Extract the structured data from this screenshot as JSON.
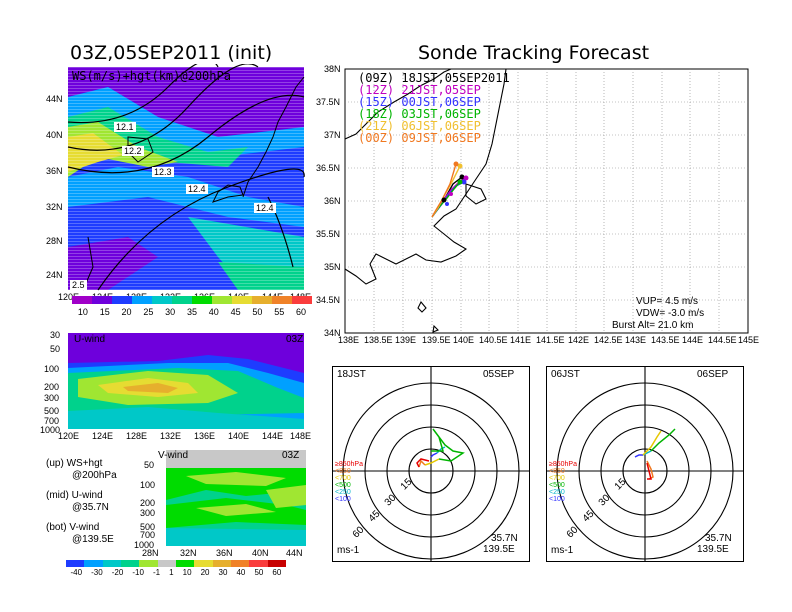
{
  "left_title": "03Z,05SEP2011 (init)",
  "right_title": "Sonde Tracking Forecast",
  "top_panel": {
    "overlay": "WS(m/s)+hgt(km)@200hPa",
    "lat_ticks": [
      "44N",
      "40N",
      "36N",
      "32N",
      "28N",
      "24N"
    ],
    "lon_ticks": [
      "120E",
      "124E",
      "128E",
      "132E",
      "136E",
      "140E",
      "144E",
      "148E"
    ],
    "contour_labels": [
      "12.1",
      "12.2",
      "12.3",
      "12.4",
      "12.4",
      "2.5"
    ],
    "colorbar_ticks": [
      "10",
      "15",
      "20",
      "25",
      "30",
      "35",
      "40",
      "45",
      "50",
      "55",
      "60"
    ],
    "colorbar_colors": [
      "#a000c8",
      "#6e00dc",
      "#1e3cff",
      "#00a0ff",
      "#00c8c8",
      "#00d28c",
      "#00dc00",
      "#a0e632",
      "#e6dc32",
      "#e6af2d",
      "#f08228",
      "#fa3c3c"
    ]
  },
  "u_panel": {
    "label": "U-wind",
    "time": "03Z",
    "p_ticks": [
      "30",
      "50",
      "100",
      "200",
      "300",
      "500",
      "700",
      "1000"
    ],
    "lon_ticks": [
      "120E",
      "124E",
      "128E",
      "132E",
      "136E",
      "140E",
      "144E",
      "148E"
    ]
  },
  "v_panel": {
    "label": "V-wind",
    "time": "03Z",
    "p_ticks": [
      "50",
      "100",
      "200",
      "300",
      "500",
      "700",
      "1000"
    ],
    "lat_ticks": [
      "28N",
      "32N",
      "36N",
      "40N",
      "44N"
    ]
  },
  "side_notes": [
    {
      "key": "(up)",
      "line1": "WS+hgt",
      "line2": "@200hPa"
    },
    {
      "key": "(mid)",
      "line1": "U-wind",
      "line2": "@35.7N"
    },
    {
      "key": "(bot)",
      "line1": "V-wind",
      "line2": "@139.5E"
    }
  ],
  "bottom_colorbar": {
    "ticks": [
      "-40",
      "-30",
      "-20",
      "-10",
      "-1",
      "1",
      "10",
      "20",
      "30",
      "40",
      "50",
      "60"
    ],
    "colors": [
      "#1e3cff",
      "#00a0ff",
      "#00c8c8",
      "#00d28c",
      "#a0e632",
      "#c8c8c8",
      "#00dc00",
      "#e6dc32",
      "#e6af2d",
      "#f08228",
      "#fa3c3c",
      "#c80000"
    ]
  },
  "map_panel": {
    "lat_ticks": [
      "38N",
      "37.5N",
      "37N",
      "36.5N",
      "36N",
      "35.5N",
      "35N",
      "34.5N",
      "34N"
    ],
    "lon_ticks": [
      "138E",
      "138.5E",
      "139E",
      "139.5E",
      "140E",
      "140.5E",
      "141E",
      "141.5E",
      "142E",
      "142.5E",
      "143E",
      "143.5E",
      "144E",
      "144.5E",
      "145E"
    ],
    "legend": [
      {
        "code": "(09Z)",
        "text": "18JST,05SEP2011",
        "color": "#000000"
      },
      {
        "code": "(12Z)",
        "text": "21JST,05SEP",
        "color": "#c000c0"
      },
      {
        "code": "(15Z)",
        "text": "00JST,06SEP",
        "color": "#3232ff"
      },
      {
        "code": "(18Z)",
        "text": "03JST,06SEP",
        "color": "#00b400"
      },
      {
        "code": "(21Z)",
        "text": "06JST,06SEP",
        "color": "#f0c030"
      },
      {
        "code": "(00Z)",
        "text": "09JST,06SEP",
        "color": "#f07820"
      }
    ],
    "vup": "VUP= 4.5 m/s",
    "vdw": "VDW= -3.0 m/s",
    "burst": "Burst Alt= 21.0 km"
  },
  "hodographs": [
    {
      "time_left": "18JST",
      "date_right": "05SEP",
      "lat": "35.7N",
      "lon": "139.5E",
      "unit": "ms-1",
      "ring_labels": [
        "15",
        "30",
        "45",
        "60"
      ],
      "levels": [
        {
          "t": "≥850hPa",
          "c": "#e60000"
        },
        {
          "t": "<850",
          "c": "#f07820"
        },
        {
          "t": "<700",
          "c": "#e6c800"
        },
        {
          "t": "<500",
          "c": "#00b400"
        },
        {
          "t": "<250",
          "c": "#00b4c8"
        },
        {
          "t": "<100",
          "c": "#3232ff"
        }
      ]
    },
    {
      "time_left": "06JST",
      "date_right": "06SEP",
      "lat": "35.7N",
      "lon": "139.5E",
      "unit": "ms-1",
      "ring_labels": [
        "15",
        "30",
        "45",
        "60"
      ],
      "levels": [
        {
          "t": "≥850hPa",
          "c": "#e60000"
        },
        {
          "t": "<850",
          "c": "#f07820"
        },
        {
          "t": "<700",
          "c": "#e6c800"
        },
        {
          "t": "<500",
          "c": "#00b400"
        },
        {
          "t": "<250",
          "c": "#00b4c8"
        },
        {
          "t": "<100",
          "c": "#3232ff"
        }
      ]
    }
  ]
}
